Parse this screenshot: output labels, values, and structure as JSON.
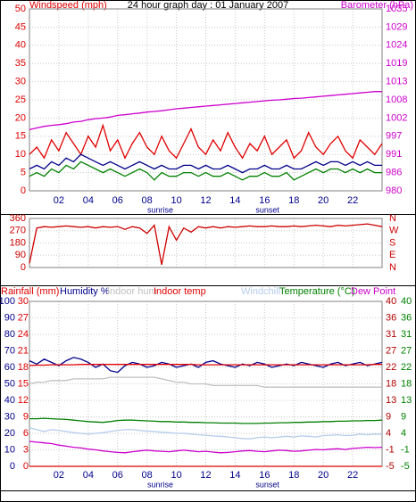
{
  "chart_data": [
    {
      "type": "line",
      "title": "24 hour graph day : 01 January 2007",
      "ylabel": "Windspeed (mph)",
      "y2label": "Barometer (hPa)",
      "xlim": [
        0,
        24
      ],
      "xticks": [
        {
          "value": 2,
          "label": "02"
        },
        {
          "value": 4,
          "label": "04"
        },
        {
          "value": 6,
          "label": "06"
        },
        {
          "value": 8,
          "label": "08"
        },
        {
          "value": 10,
          "label": "10"
        },
        {
          "value": 12,
          "label": "12"
        },
        {
          "value": 14,
          "label": "14"
        },
        {
          "value": 16,
          "label": "16"
        },
        {
          "value": 18,
          "label": "18"
        },
        {
          "value": 20,
          "label": "20"
        },
        {
          "value": 22,
          "label": "22"
        }
      ],
      "annotations": [
        {
          "text": "sunrise",
          "x": 8.9
        },
        {
          "text": "sunset",
          "x": 16.2
        }
      ],
      "ylim": [
        0,
        50
      ],
      "yticks": [
        0,
        5,
        10,
        15,
        20,
        25,
        30,
        35,
        40,
        45,
        50
      ],
      "y2lim": [
        980,
        1035
      ],
      "y2ticks": [
        980,
        {
          "value": 985.5,
          "label": "986"
        },
        991,
        {
          "value": 996.5,
          "label": "997"
        },
        1002,
        {
          "value": 1007.5,
          "label": "1008"
        },
        1013,
        {
          "value": 1018.5,
          "label": "1019"
        },
        1024,
        {
          "value": 1029.4,
          "label": "1029"
        },
        1035
      ],
      "grid": true,
      "x": [
        0,
        0.5,
        1,
        1.5,
        2,
        2.5,
        3,
        3.5,
        4,
        4.5,
        5,
        5.5,
        6,
        6.5,
        7,
        7.5,
        8,
        8.5,
        9,
        9.5,
        10,
        10.5,
        11,
        11.5,
        12,
        12.5,
        13,
        13.5,
        14,
        14.5,
        15,
        15.5,
        16,
        16.5,
        17,
        17.5,
        18,
        18.5,
        19,
        19.5,
        20,
        20.5,
        21,
        21.5,
        22,
        22.5,
        23,
        23.5,
        24
      ],
      "series": [
        {
          "color": "#e00000",
          "axis": "y",
          "values": [
            10,
            12,
            9,
            14,
            11,
            16,
            13,
            10,
            15,
            12,
            18,
            11,
            14,
            9,
            13,
            16,
            12,
            10,
            15,
            11,
            9,
            13,
            17,
            12,
            10,
            14,
            11,
            16,
            12,
            9,
            13,
            11,
            15,
            10,
            12,
            14,
            9,
            11,
            16,
            12,
            10,
            13,
            15,
            11,
            9,
            14,
            12,
            10,
            13
          ]
        },
        {
          "color": "#00008b",
          "axis": "y",
          "values": [
            6,
            7,
            6,
            8,
            7,
            9,
            8,
            10,
            9,
            8,
            7,
            8,
            7,
            6,
            7,
            8,
            7,
            6,
            7,
            6,
            6,
            7,
            7,
            6,
            7,
            6,
            6,
            7,
            6,
            5,
            6,
            6,
            7,
            6,
            6,
            7,
            6,
            6,
            7,
            8,
            7,
            8,
            8,
            7,
            8,
            7,
            8,
            7,
            7
          ]
        },
        {
          "color": "#008000",
          "axis": "y",
          "values": [
            4,
            5,
            4,
            6,
            5,
            7,
            6,
            8,
            7,
            6,
            5,
            6,
            5,
            4,
            5,
            6,
            5,
            3,
            5,
            4,
            4,
            5,
            5,
            4,
            5,
            4,
            4,
            5,
            4,
            3,
            4,
            4,
            5,
            4,
            4,
            5,
            3,
            4,
            5,
            6,
            5,
            6,
            6,
            5,
            6,
            5,
            6,
            5,
            5
          ]
        },
        {
          "color": "#cc00cc",
          "axis": "y2",
          "values": [
            998.5,
            999,
            999.5,
            999.8,
            1000,
            1000.3,
            1000.8,
            1001,
            1001.5,
            1001.8,
            1002,
            1002.3,
            1002.8,
            1003,
            1003.3,
            1003.5,
            1003.8,
            1004,
            1004.2,
            1004.5,
            1004.8,
            1005,
            1005.2,
            1005.4,
            1005.6,
            1005.8,
            1006,
            1006.2,
            1006.4,
            1006.6,
            1006.8,
            1007,
            1007.2,
            1007.4,
            1007.5,
            1007.7,
            1007.9,
            1008,
            1008.2,
            1008.4,
            1008.6,
            1008.8,
            1009,
            1009.2,
            1009.4,
            1009.6,
            1009.8,
            1010,
            1010
          ]
        }
      ]
    },
    {
      "type": "line",
      "xlim": [
        0,
        24
      ],
      "xgrid": [
        2,
        4,
        6,
        8,
        10,
        12,
        14,
        16,
        18,
        20,
        22
      ],
      "ylim": [
        0,
        360
      ],
      "yticks": [
        0,
        90,
        180,
        270,
        360
      ],
      "y2lim": [
        0,
        360
      ],
      "y2ticks": [
        {
          "value": 360,
          "label": "N"
        },
        {
          "value": 270,
          "label": "W"
        },
        {
          "value": 180,
          "label": "S"
        },
        {
          "value": 90,
          "label": "E"
        },
        {
          "value": 0,
          "label": "N"
        }
      ],
      "grid": true,
      "x": [
        0,
        0.5,
        1,
        1.5,
        2,
        2.5,
        3,
        3.5,
        4,
        4.5,
        5,
        5.5,
        6,
        6.5,
        7,
        7.5,
        8,
        8.5,
        9,
        9.5,
        10,
        10.5,
        11,
        11.5,
        12,
        12.5,
        13,
        13.5,
        14,
        14.5,
        15,
        15.5,
        16,
        16.5,
        17,
        17.5,
        18,
        18.5,
        19,
        19.5,
        20,
        20.5,
        21,
        21.5,
        22,
        22.5,
        23,
        23.5,
        24
      ],
      "series": [
        {
          "color": "#cc0000",
          "axis": "y",
          "values": [
            30,
            290,
            300,
            295,
            300,
            305,
            300,
            295,
            300,
            290,
            300,
            295,
            300,
            280,
            300,
            290,
            250,
            310,
            20,
            300,
            200,
            290,
            260,
            300,
            290,
            300,
            290,
            300,
            295,
            300,
            305,
            300,
            300,
            305,
            300,
            300,
            305,
            300,
            305,
            310,
            305,
            300,
            310,
            305,
            310,
            315,
            320,
            310,
            300
          ]
        }
      ]
    },
    {
      "type": "line",
      "xlim": [
        0,
        24
      ],
      "xticks": [
        {
          "value": 2,
          "label": "02"
        },
        {
          "value": 4,
          "label": "04"
        },
        {
          "value": 6,
          "label": "06"
        },
        {
          "value": 8,
          "label": "08"
        },
        {
          "value": 10,
          "label": "10"
        },
        {
          "value": 12,
          "label": "12"
        },
        {
          "value": 14,
          "label": "14"
        },
        {
          "value": 16,
          "label": "16"
        },
        {
          "value": 18,
          "label": "18"
        },
        {
          "value": 20,
          "label": "20"
        },
        {
          "value": 22,
          "label": "22"
        }
      ],
      "annotations": [
        {
          "text": "sunrise",
          "x": 8.9
        },
        {
          "text": "sunset",
          "x": 16.2
        }
      ],
      "ylim": [
        0,
        100
      ],
      "yticks": [
        0,
        10,
        20,
        30,
        40,
        50,
        60,
        70,
        80,
        90,
        100
      ],
      "y3lim": [
        0,
        30
      ],
      "y3ticks": [
        0,
        3,
        6,
        9,
        12,
        15,
        18,
        21,
        24,
        27,
        30
      ],
      "y2lim": [
        -5,
        40
      ],
      "y2ticks": [
        -5,
        {
          "value": -0.5,
          "label": "-1"
        },
        4,
        {
          "value": 8.5,
          "label": "9"
        },
        13,
        {
          "value": 17.5,
          "label": "18"
        },
        22,
        {
          "value": 26.5,
          "label": "27"
        },
        31,
        {
          "value": 35.5,
          "label": "36"
        },
        40
      ],
      "y4ticks": [
        -5,
        {
          "value": -0.5,
          "label": "-1"
        },
        4,
        {
          "value": 8.5,
          "label": "9"
        },
        13,
        {
          "value": 17.5,
          "label": "18"
        },
        22,
        {
          "value": 26.5,
          "label": "27"
        },
        31,
        {
          "value": 35.5,
          "label": "36"
        },
        40
      ],
      "grid": true,
      "x": [
        0,
        0.5,
        1,
        1.5,
        2,
        2.5,
        3,
        3.5,
        4,
        4.5,
        5,
        5.5,
        6,
        6.5,
        7,
        7.5,
        8,
        8.5,
        9,
        9.5,
        10,
        10.5,
        11,
        11.5,
        12,
        12.5,
        13,
        13.5,
        14,
        14.5,
        15,
        15.5,
        16,
        16.5,
        17,
        17.5,
        18,
        18.5,
        19,
        19.5,
        20,
        20.5,
        21,
        21.5,
        22,
        22.5,
        23,
        23.5,
        24
      ],
      "series": [
        {
          "name": "Rainfall (mm)",
          "color": "#e00000",
          "axis": "y3",
          "values": [
            0,
            0,
            0,
            0,
            0,
            0,
            0,
            0,
            0,
            0,
            0,
            0,
            0,
            0,
            0,
            0,
            0,
            0,
            0,
            0,
            0,
            0,
            0,
            0,
            0,
            0,
            0,
            0,
            0,
            0,
            0,
            0,
            0,
            0,
            0,
            0,
            0,
            0,
            0,
            0,
            0,
            0,
            0,
            0,
            0,
            0,
            0,
            0,
            0
          ]
        },
        {
          "name": "Humidity %",
          "color": "#00008b",
          "axis": "y",
          "values": [
            64,
            62,
            65,
            63,
            61,
            64,
            66,
            65,
            63,
            60,
            62,
            58,
            57,
            61,
            63,
            62,
            60,
            61,
            63,
            62,
            60,
            61,
            62,
            60,
            63,
            64,
            62,
            61,
            60,
            62,
            61,
            63,
            62,
            60,
            61,
            62,
            61,
            63,
            62,
            61,
            60,
            62,
            63,
            61,
            62,
            63,
            61,
            62,
            63
          ]
        },
        {
          "name": "Indoor hum",
          "color": "#c0c0c0",
          "axis": "y",
          "values": [
            50,
            51,
            51,
            52,
            52,
            52,
            53,
            53,
            53,
            53,
            53,
            54,
            54,
            54,
            54,
            54,
            54,
            54,
            53,
            52,
            51,
            51,
            50,
            50,
            50,
            49,
            49,
            49,
            49,
            49,
            49,
            49,
            48,
            48,
            48,
            48,
            48,
            48,
            48,
            48,
            48,
            48,
            48,
            48,
            48,
            48,
            48,
            48,
            48
          ]
        },
        {
          "name": "Indoor temp",
          "color": "#e00000",
          "axis": "y2",
          "values": [
            22.5,
            22.6,
            22.6,
            22.7,
            22.7,
            22.7,
            22.7,
            22.8,
            22.8,
            22.8,
            22.8,
            22.8,
            22.8,
            22.8,
            22.8,
            22.8,
            22.8,
            22.8,
            22.8,
            22.8,
            22.8,
            22.8,
            22.8,
            22.7,
            22.7,
            22.7,
            22.7,
            22.7,
            22.7,
            22.7,
            22.7,
            22.7,
            22.7,
            22.7,
            22.7,
            22.7,
            22.7,
            22.7,
            22.7,
            22.7,
            22.7,
            22.7,
            22.7,
            22.7,
            22.7,
            22.7,
            22.7,
            22.8,
            22.8
          ]
        },
        {
          "name": "Windchill",
          "color": "#b4cceb",
          "axis": "y2",
          "values": [
            5.5,
            5,
            4.5,
            5,
            4.8,
            4.5,
            4.2,
            4,
            3.8,
            4,
            4.2,
            4.5,
            4.8,
            5,
            5,
            4.8,
            4.6,
            4.5,
            4.3,
            4.2,
            4,
            4,
            3.8,
            3.6,
            3.5,
            3.3,
            3.2,
            3,
            2.8,
            2.6,
            2.5,
            2.8,
            3,
            2.8,
            3,
            3.2,
            3,
            3.3,
            3.2,
            3,
            3.4,
            3.5,
            3.6,
            3.4,
            3.5,
            3.8,
            3.6,
            3.8,
            3.7
          ]
        },
        {
          "name": "Temperature (°C)",
          "color": "#008000",
          "axis": "y2",
          "values": [
            8,
            8,
            8.1,
            8,
            7.9,
            7.8,
            7.6,
            7.4,
            7.2,
            7.1,
            7,
            7.2,
            7.5,
            7.6,
            7.6,
            7.5,
            7.4,
            7.3,
            7.2,
            7.2,
            7.1,
            7.1,
            7,
            7,
            6.9,
            6.9,
            6.8,
            6.8,
            6.8,
            6.7,
            6.7,
            6.7,
            6.8,
            6.8,
            6.9,
            6.9,
            7,
            7,
            7.1,
            7.1,
            7.2,
            7.2,
            7.3,
            7.3,
            7.4,
            7.4,
            7.5,
            7.5,
            7.6
          ]
        },
        {
          "name": "Dew Point",
          "color": "#cc00cc",
          "axis": "y2",
          "values": [
            1.8,
            1.6,
            1.4,
            1.2,
            0.8,
            0.5,
            0.2,
            0,
            -0.3,
            -0.5,
            -0.8,
            -1,
            -1.2,
            -1.3,
            -1,
            -0.8,
            -0.6,
            -0.8,
            -0.9,
            -1,
            -0.8,
            -0.6,
            -0.8,
            -1,
            -0.9,
            -1.1,
            -1.3,
            -1.2,
            -1,
            -0.8,
            -0.7,
            -0.9,
            -1,
            -0.8,
            -0.6,
            -0.7,
            -0.9,
            -0.8,
            -0.6,
            -0.4,
            -0.5,
            -0.3,
            -0.2,
            -0.4,
            -0.1,
            0,
            0.2,
            0.1,
            0.2
          ]
        }
      ]
    }
  ]
}
